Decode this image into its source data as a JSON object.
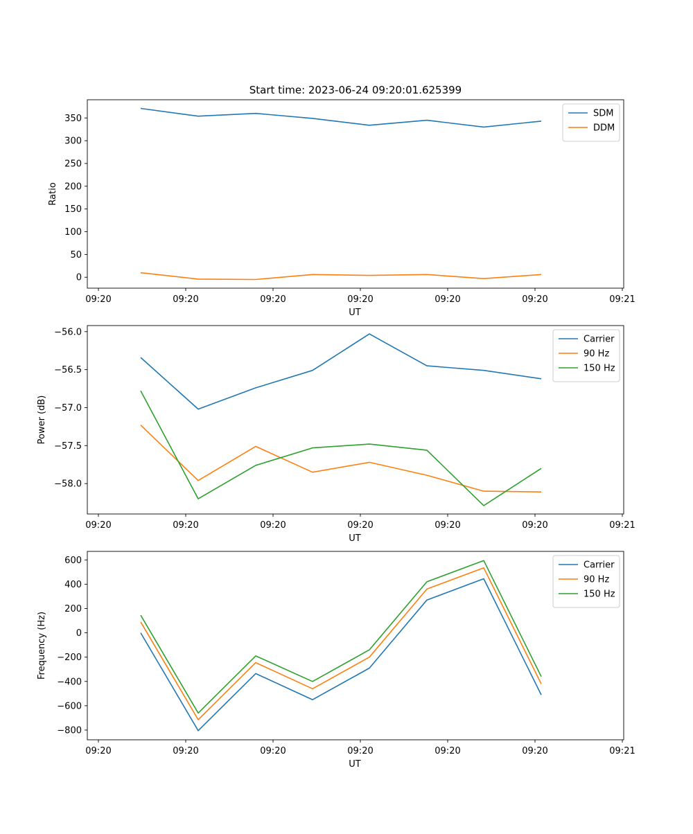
{
  "title": "Start time: 2023-06-24 09:20:01.625399",
  "colors": {
    "blue": "#1f77b4",
    "orange": "#ff7f0e",
    "green": "#2ca02c"
  },
  "chart_data": [
    {
      "type": "line",
      "xlabel": "UT",
      "ylabel": "Ratio",
      "x_tick_labels": [
        "09:20",
        "09:20",
        "09:20",
        "09:20",
        "09:20",
        "09:20",
        "09:20",
        "09:21"
      ],
      "ylim": [
        -24,
        390
      ],
      "y_ticks": [
        0,
        50,
        100,
        150,
        200,
        250,
        300,
        350
      ],
      "legend_position": "top-right",
      "series": [
        {
          "name": "SDM",
          "color": "#1f77b4",
          "values": [
            371,
            354,
            360,
            349,
            334,
            345,
            330,
            343
          ]
        },
        {
          "name": "DDM",
          "color": "#ff7f0e",
          "values": [
            10,
            -4,
            -5,
            6,
            4,
            6,
            -3,
            6
          ]
        }
      ]
    },
    {
      "type": "line",
      "xlabel": "UT",
      "ylabel": "Power (dB)",
      "x_tick_labels": [
        "09:20",
        "09:20",
        "09:20",
        "09:20",
        "09:20",
        "09:20",
        "09:20",
        "09:21"
      ],
      "ylim": [
        -58.4,
        -55.92
      ],
      "y_ticks": [
        -58.0,
        -57.5,
        -57.0,
        -56.5,
        -56.0
      ],
      "legend_position": "top-right",
      "series": [
        {
          "name": "Carrier",
          "color": "#1f77b4",
          "values": [
            -56.34,
            -57.02,
            -56.74,
            -56.51,
            -56.03,
            -56.45,
            -56.51,
            -56.62
          ]
        },
        {
          "name": "90 Hz",
          "color": "#ff7f0e",
          "values": [
            -57.23,
            -57.96,
            -57.51,
            -57.85,
            -57.72,
            -57.89,
            -58.1,
            -58.11
          ]
        },
        {
          "name": "150 Hz",
          "color": "#2ca02c",
          "values": [
            -56.78,
            -58.2,
            -57.76,
            -57.53,
            -57.48,
            -57.56,
            -58.29,
            -57.8
          ]
        }
      ]
    },
    {
      "type": "line",
      "xlabel": "UT",
      "ylabel": "Frequency (Hz)",
      "x_tick_labels": [
        "09:20",
        "09:20",
        "09:20",
        "09:20",
        "09:20",
        "09:20",
        "09:20",
        "09:21"
      ],
      "ylim": [
        -880,
        670
      ],
      "y_ticks": [
        -800,
        -600,
        -400,
        -200,
        0,
        200,
        400,
        600
      ],
      "legend_position": "top-right",
      "series": [
        {
          "name": "Carrier",
          "color": "#1f77b4",
          "values": [
            0,
            -805,
            -335,
            -550,
            -290,
            270,
            445,
            -510
          ]
        },
        {
          "name": "90 Hz",
          "color": "#ff7f0e",
          "values": [
            90,
            -715,
            -245,
            -460,
            -200,
            360,
            535,
            -420
          ]
        },
        {
          "name": "150 Hz",
          "color": "#2ca02c",
          "values": [
            145,
            -660,
            -190,
            -400,
            -140,
            420,
            595,
            -360
          ]
        }
      ]
    }
  ]
}
